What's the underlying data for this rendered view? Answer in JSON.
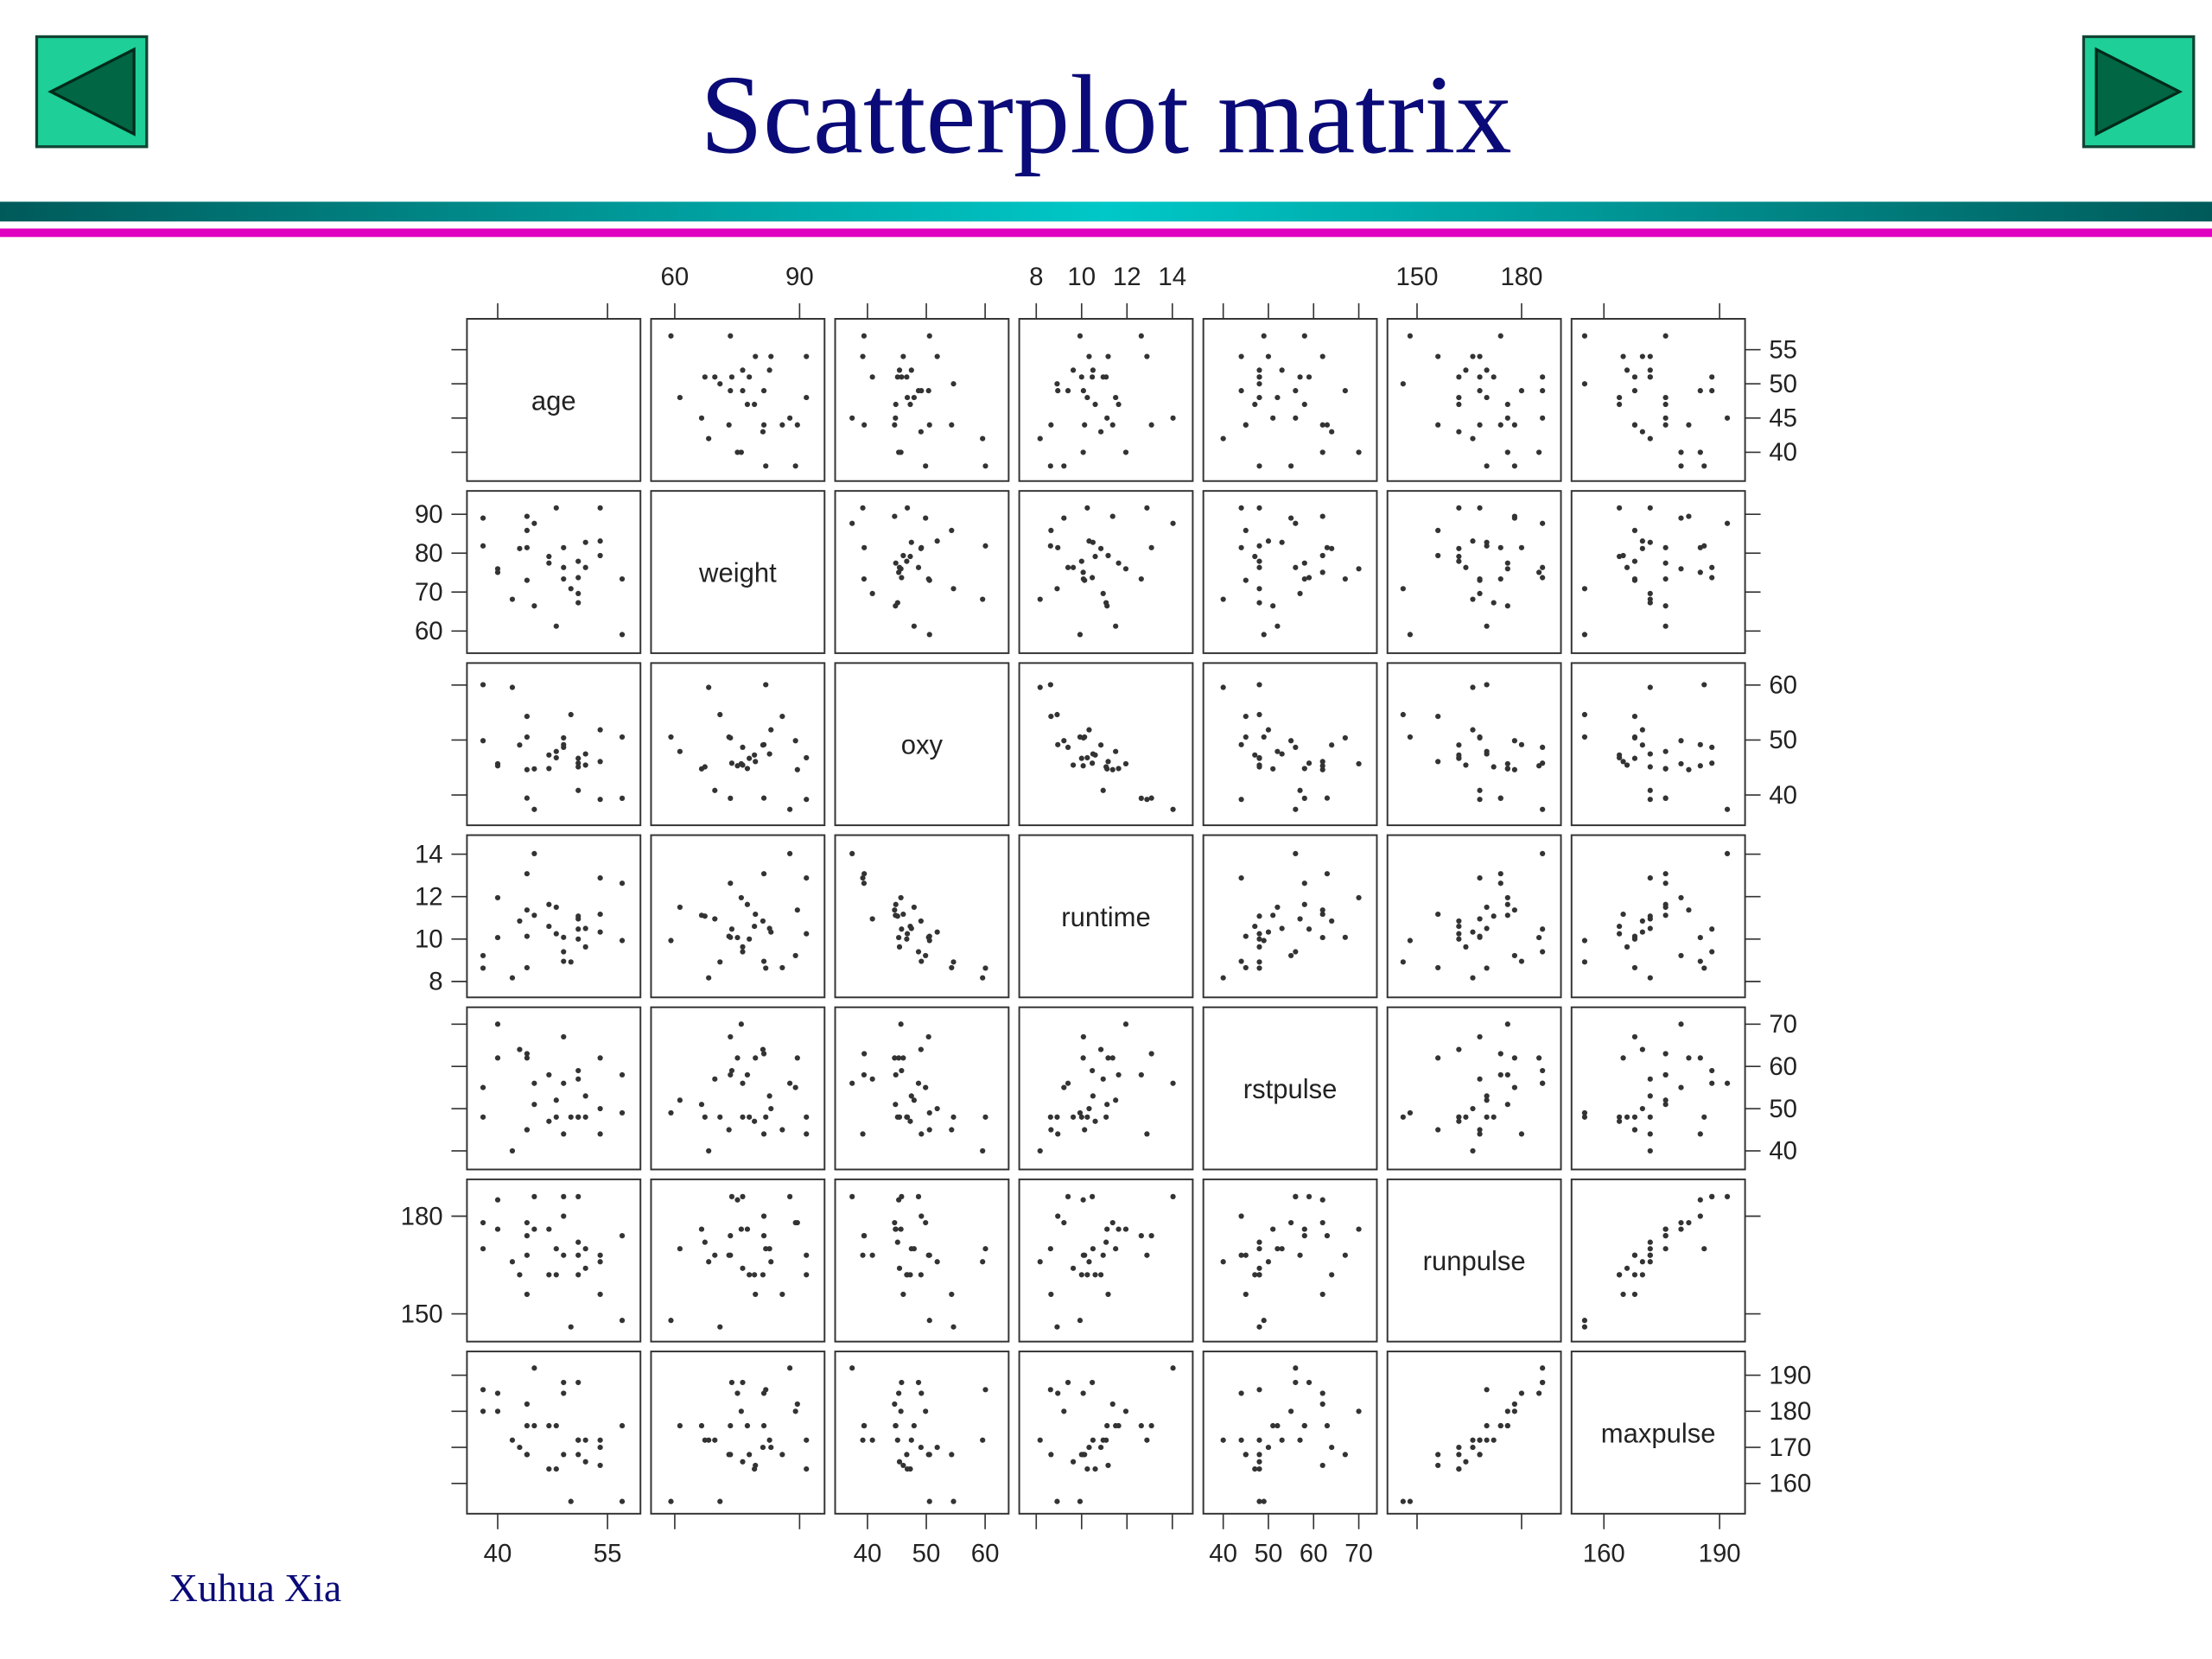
{
  "chart_data": {
    "type": "scatter-matrix",
    "title": "Scatterplot matrix",
    "point_color": "#333333",
    "variables": [
      {
        "name": "age",
        "lim": [
          35.8,
          59.5
        ],
        "xticks": [
          40,
          55
        ],
        "yticks": [
          40,
          45,
          50,
          55
        ],
        "values": [
          44,
          40,
          44,
          42,
          38,
          47,
          40,
          43,
          44,
          38,
          44,
          45,
          45,
          47,
          54,
          49,
          51,
          51,
          48,
          49,
          57,
          54,
          52,
          50,
          51,
          54,
          51,
          57,
          49,
          48,
          52
        ]
      },
      {
        "name": "weight",
        "lim": [
          54.3,
          96
        ],
        "xticks": [
          60,
          90
        ],
        "yticks": [
          60,
          70,
          80,
          90
        ],
        "values": [
          89.47,
          75.07,
          85.84,
          68.15,
          89.02,
          77.45,
          75.98,
          81.19,
          81.42,
          81.87,
          73.03,
          87.66,
          66.45,
          79.15,
          83.12,
          81.42,
          69.63,
          77.91,
          91.63,
          73.37,
          73.37,
          79.38,
          76.32,
          70.87,
          67.25,
          91.63,
          73.71,
          59.08,
          76.32,
          61.24,
          82.78
        ]
      },
      {
        "name": "oxy",
        "lim": [
          34.5,
          64
        ],
        "xticks": [
          40,
          50,
          60
        ],
        "yticks": [
          40,
          50,
          60
        ],
        "values": [
          44.609,
          45.313,
          54.297,
          59.571,
          49.874,
          44.811,
          45.681,
          49.091,
          39.442,
          60.055,
          50.541,
          37.388,
          44.754,
          47.273,
          51.855,
          49.156,
          40.836,
          46.672,
          46.774,
          50.388,
          39.407,
          46.08,
          45.441,
          54.625,
          45.118,
          39.203,
          45.79,
          50.545,
          48.673,
          47.92,
          47.467
        ]
      },
      {
        "name": "runtime",
        "lim": [
          7.25,
          14.9
        ],
        "xticks": [
          8,
          10,
          12,
          14
        ],
        "yticks": [
          8,
          10,
          12,
          14
        ],
        "values": [
          11.37,
          10.07,
          8.65,
          8.17,
          9.22,
          11.63,
          11.95,
          10.85,
          13.08,
          8.63,
          10.13,
          14.03,
          11.12,
          10.6,
          10.33,
          8.95,
          10.95,
          10,
          10.25,
          10.08,
          12.63,
          11.17,
          9.63,
          8.92,
          11.08,
          12.88,
          10.47,
          9.93,
          9.4,
          11.5,
          10.5
        ]
      },
      {
        "name": "rstpulse",
        "lim": [
          35.6,
          74
        ],
        "xticks": [
          40,
          50,
          60,
          70
        ],
        "yticks": [
          40,
          50,
          60,
          70
        ],
        "values": [
          62,
          62,
          45,
          40,
          55,
          58,
          70,
          64,
          63,
          48,
          45,
          56,
          51,
          47,
          50,
          44,
          57,
          48,
          48,
          67,
          58,
          62,
          48,
          48,
          48,
          44,
          59,
          49,
          56,
          52,
          53
        ]
      },
      {
        "name": "runpulse",
        "lim": [
          141.5,
          191.3
        ],
        "xticks": [
          150,
          180
        ],
        "yticks": [
          150,
          180
        ],
        "values": [
          178,
          185,
          156,
          166,
          178,
          176,
          176,
          162,
          174,
          170,
          168,
          186,
          176,
          162,
          166,
          180,
          168,
          162,
          162,
          168,
          174,
          156,
          164,
          146,
          172,
          168,
          186,
          148,
          186,
          170,
          170
        ]
      },
      {
        "name": "maxpulse",
        "lim": [
          151.6,
          196.6
        ],
        "xticks": [
          160,
          190
        ],
        "yticks": [
          160,
          170,
          180,
          190
        ],
        "values": [
          182,
          185,
          168,
          172,
          180,
          176,
          180,
          170,
          176,
          186,
          168,
          192,
          176,
          164,
          170,
          185,
          172,
          168,
          164,
          168,
          176,
          165,
          166,
          155,
          172,
          172,
          188,
          155,
          188,
          176,
          172
        ]
      }
    ]
  },
  "footer": "Xuhua Xia"
}
